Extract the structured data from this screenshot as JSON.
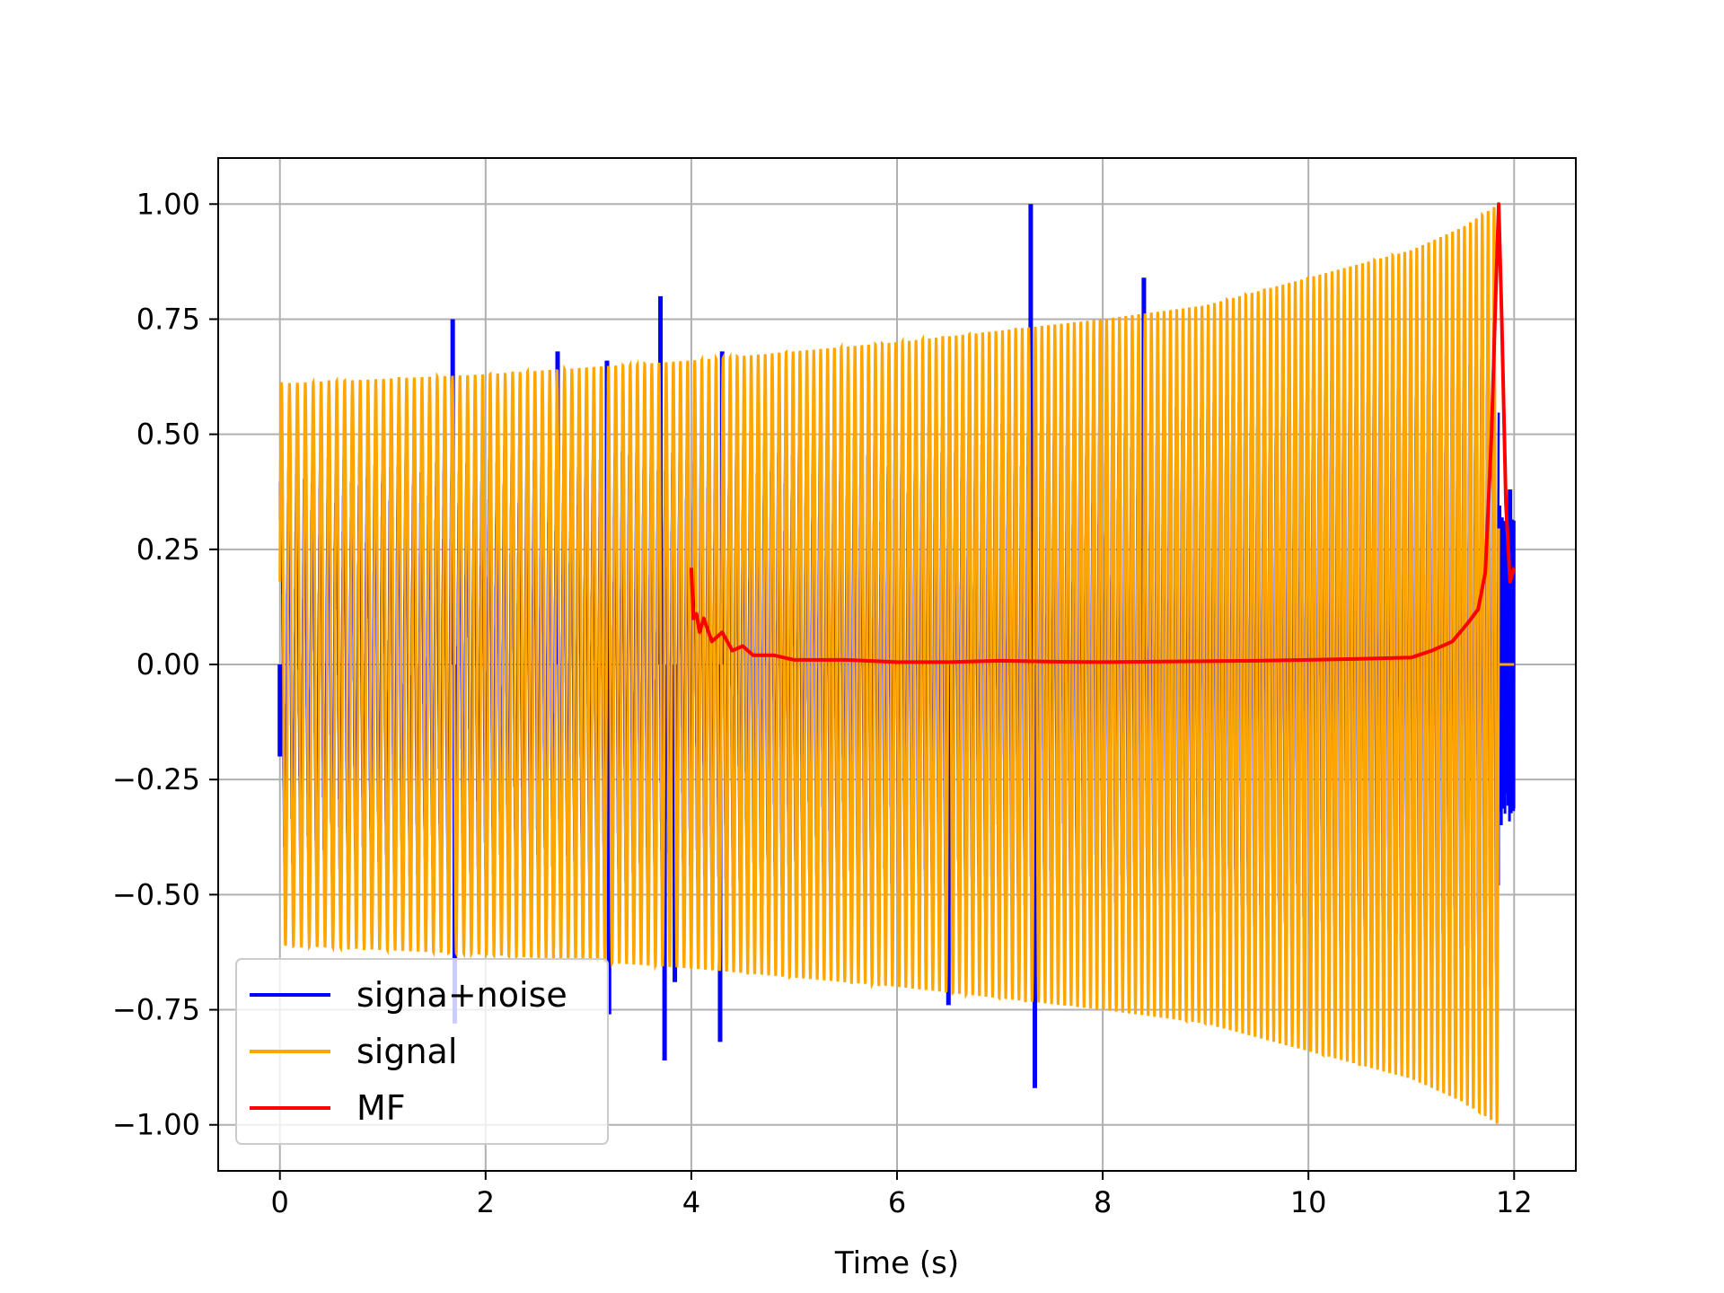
{
  "chart_data": {
    "type": "line",
    "title": "",
    "xlabel": "Time (s)",
    "ylabel": "",
    "xlim": [
      -0.6,
      12.6
    ],
    "ylim": [
      -1.1,
      1.1
    ],
    "xticks": [
      0,
      2,
      4,
      6,
      8,
      10,
      12
    ],
    "xtick_labels": [
      "0",
      "2",
      "4",
      "6",
      "8",
      "10",
      "12"
    ],
    "yticks": [
      1.0,
      0.75,
      0.5,
      0.25,
      0.0,
      -0.25,
      -0.5,
      -0.75,
      -1.0
    ],
    "ytick_labels": [
      "1.00",
      "0.75",
      "0.50",
      "0.25",
      "0.00",
      "−0.25",
      "−0.50",
      "−0.75",
      "−1.00"
    ],
    "grid": true,
    "legend_position": "lower-left",
    "series": [
      {
        "name": "signa+noise",
        "color": "#0000ff",
        "kind": "noisy-chirp",
        "t_start": 0.0,
        "t_end": 12.0,
        "spikes": [
          {
            "t": 0.0,
            "v": -0.2
          },
          {
            "t": 1.68,
            "v": 0.75
          },
          {
            "t": 1.7,
            "v": -0.78
          },
          {
            "t": 2.7,
            "v": 0.68
          },
          {
            "t": 3.18,
            "v": 0.66
          },
          {
            "t": 3.2,
            "v": -0.76
          },
          {
            "t": 3.7,
            "v": 0.8
          },
          {
            "t": 3.74,
            "v": -0.86
          },
          {
            "t": 3.84,
            "v": -0.69
          },
          {
            "t": 4.28,
            "v": -0.82
          },
          {
            "t": 4.3,
            "v": 0.68
          },
          {
            "t": 6.5,
            "v": -0.74
          },
          {
            "t": 7.3,
            "v": 1.0
          },
          {
            "t": 7.34,
            "v": -0.92
          },
          {
            "t": 8.4,
            "v": 0.84
          },
          {
            "t": 11.84,
            "v": -0.48
          },
          {
            "t": 11.96,
            "v": 0.38
          }
        ]
      },
      {
        "name": "signal",
        "color": "#ffa500",
        "kind": "chirp",
        "t_start": 0.0,
        "t_end": 11.85,
        "envelope": [
          [
            0.0,
            0.61
          ],
          [
            2.0,
            0.63
          ],
          [
            4.0,
            0.66
          ],
          [
            6.0,
            0.7
          ],
          [
            8.0,
            0.75
          ],
          [
            9.0,
            0.78
          ],
          [
            10.0,
            0.84
          ],
          [
            11.0,
            0.9
          ],
          [
            11.5,
            0.95
          ],
          [
            11.85,
            1.0
          ]
        ],
        "cycles": 180,
        "tail": [
          [
            11.85,
            0.0
          ],
          [
            12.0,
            0.0
          ]
        ]
      },
      {
        "name": "MF",
        "color": "#ff0000",
        "kind": "matched-filter",
        "x": [
          4.0,
          4.02,
          4.05,
          4.08,
          4.12,
          4.2,
          4.3,
          4.4,
          4.5,
          4.6,
          4.8,
          5.0,
          5.5,
          6.0,
          6.5,
          7.0,
          7.5,
          8.0,
          8.5,
          9.0,
          9.5,
          10.0,
          10.5,
          11.0,
          11.2,
          11.4,
          11.55,
          11.65,
          11.72,
          11.78,
          11.82,
          11.85,
          11.88,
          11.92,
          11.96,
          12.0
        ],
        "y": [
          0.21,
          0.1,
          0.11,
          0.07,
          0.1,
          0.05,
          0.07,
          0.03,
          0.04,
          0.02,
          0.02,
          0.01,
          0.01,
          0.005,
          0.005,
          0.008,
          0.006,
          0.005,
          0.006,
          0.007,
          0.008,
          0.01,
          0.012,
          0.015,
          0.03,
          0.05,
          0.09,
          0.12,
          0.2,
          0.5,
          0.8,
          1.0,
          0.75,
          0.35,
          0.18,
          0.21
        ]
      }
    ]
  }
}
